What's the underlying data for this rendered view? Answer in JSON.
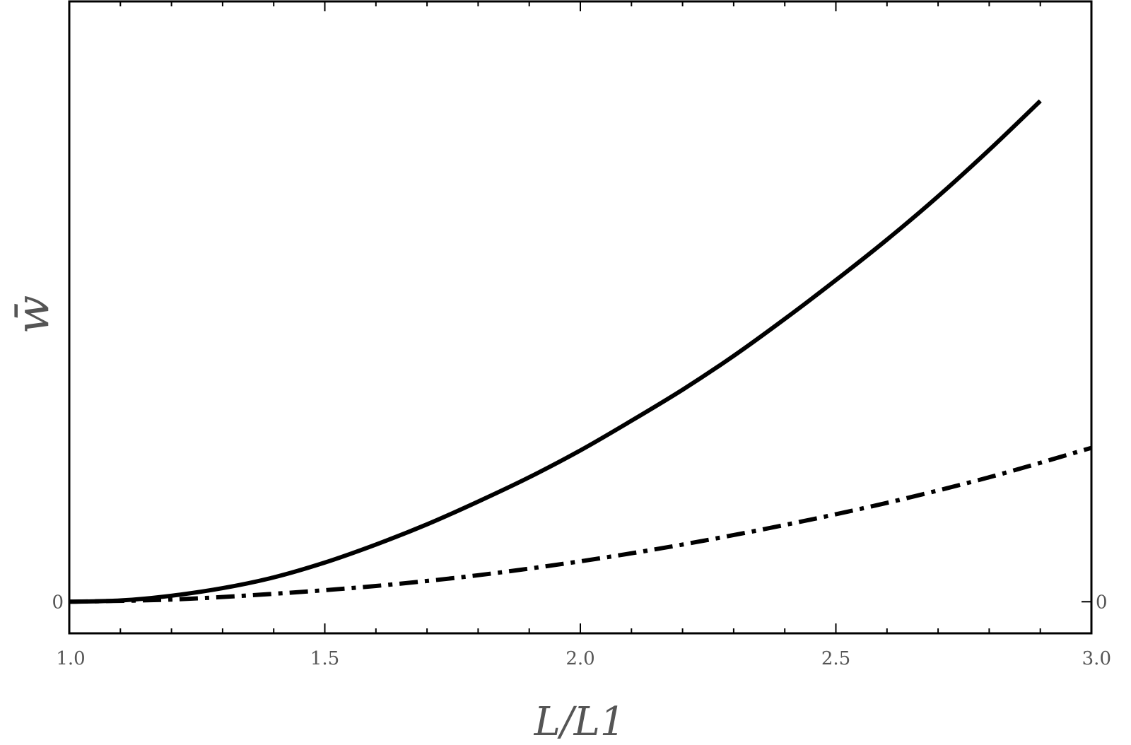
{
  "chart_data": {
    "type": "line",
    "xlabel": "L/L1",
    "ylabel": "w̄",
    "xlim": [
      1.0,
      3.0
    ],
    "ylim": [
      -0.1,
      1.9
    ],
    "x_ticks": [
      "1.0",
      "1.5",
      "2.0",
      "2.5",
      "3.0"
    ],
    "x_tick_values": [
      1.0,
      1.5,
      2.0,
      2.5,
      3.0
    ],
    "y_ticks": [
      "0"
    ],
    "y_tick_values": [
      0
    ],
    "grid": false,
    "series": [
      {
        "style": "solid",
        "color": "#000000",
        "x": [
          1.0,
          1.1,
          1.2,
          1.3,
          1.4,
          1.5,
          1.6,
          1.7,
          1.8,
          1.9,
          2.0,
          2.1,
          2.2,
          2.3,
          2.4,
          2.5,
          2.6,
          2.7,
          2.8,
          2.9
        ],
        "y": [
          0.0,
          0.004,
          0.019,
          0.043,
          0.077,
          0.124,
          0.181,
          0.245,
          0.317,
          0.394,
          0.479,
          0.573,
          0.671,
          0.778,
          0.895,
          1.018,
          1.146,
          1.283,
          1.43,
          1.585
        ]
      },
      {
        "style": "dashdot",
        "color": "#000000",
        "x": [
          1.0,
          1.2,
          1.4,
          1.6,
          1.8,
          2.0,
          2.2,
          2.4,
          2.6,
          2.8,
          3.0
        ],
        "y": [
          0.0,
          0.007,
          0.025,
          0.05,
          0.084,
          0.128,
          0.181,
          0.243,
          0.313,
          0.394,
          0.487
        ]
      }
    ]
  }
}
